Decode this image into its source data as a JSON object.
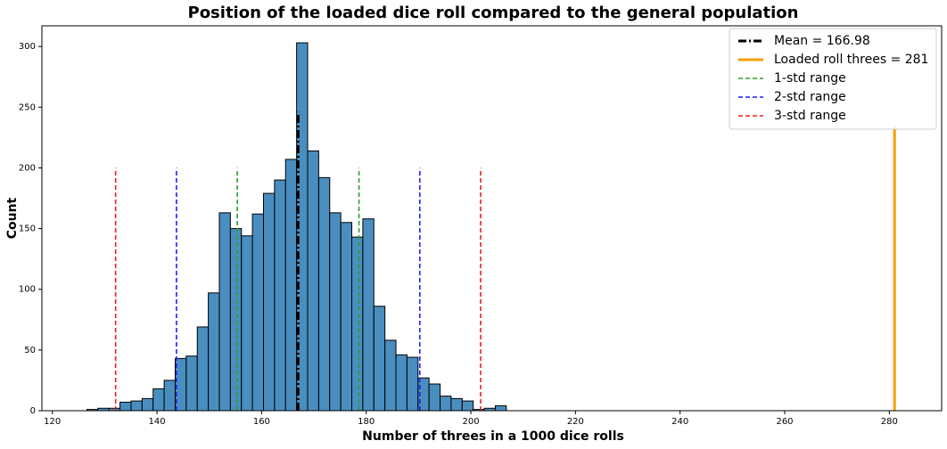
{
  "chart_data": {
    "type": "histogram",
    "title": "Position of the loaded dice roll compared to the general population",
    "x_label": "Number of threes in a 1000 dice rolls",
    "y_label": "Count",
    "bins": [
      126.6,
      128.71,
      130.82,
      132.93,
      135.04,
      137.15,
      139.26,
      141.37,
      143.48,
      145.59,
      147.7,
      149.81,
      151.92,
      154.03,
      156.14,
      158.25,
      160.36,
      162.47,
      164.58,
      166.69,
      168.8,
      170.91,
      173.02,
      175.13,
      177.24,
      179.35,
      181.46,
      183.57,
      185.68,
      187.79,
      189.9,
      192.01,
      194.12,
      196.23,
      198.34,
      200.45,
      202.56,
      204.67,
      206.78
    ],
    "values": [
      1,
      2,
      2,
      7,
      8,
      10,
      18,
      25,
      43,
      45,
      69,
      97,
      163,
      150,
      144,
      162,
      179,
      190,
      207,
      303,
      214,
      192,
      163,
      155,
      143,
      158,
      86,
      58,
      46,
      44,
      27,
      22,
      12,
      10,
      8,
      1,
      2,
      4
    ],
    "color": "#4a8ec0",
    "edge_color": "#000000",
    "xlim": [
      118,
      290
    ],
    "ylim": [
      0,
      317
    ],
    "xticks": [
      120,
      140,
      160,
      180,
      200,
      220,
      240,
      260,
      280
    ],
    "yticks": [
      0,
      50,
      100,
      150,
      200,
      250,
      300
    ],
    "grid": false,
    "legend_position": "upper right",
    "vlines": [
      {
        "name": "Mean = 166.98",
        "x": [
          166.98
        ],
        "ymax": 246,
        "color": "#000000",
        "style": "dashdot",
        "width": 3
      },
      {
        "name": "Loaded roll threes = 281",
        "x": [
          281
        ],
        "ymax": 235,
        "color": "#f5a000",
        "style": "solid",
        "width": 3
      },
      {
        "name": "1-std range",
        "x": [
          155.35,
          178.61
        ],
        "ymax": 200,
        "color": "#2ca02c",
        "style": "dashed",
        "width": 1.6
      },
      {
        "name": "2-std range",
        "x": [
          143.72,
          190.24
        ],
        "ymax": 200,
        "color": "#1f1fff",
        "style": "dashed",
        "width": 1.6
      },
      {
        "name": "3-std range",
        "x": [
          132.09,
          201.87
        ],
        "ymax": 200,
        "color": "#e8201f",
        "style": "dashed",
        "width": 1.6
      }
    ]
  }
}
